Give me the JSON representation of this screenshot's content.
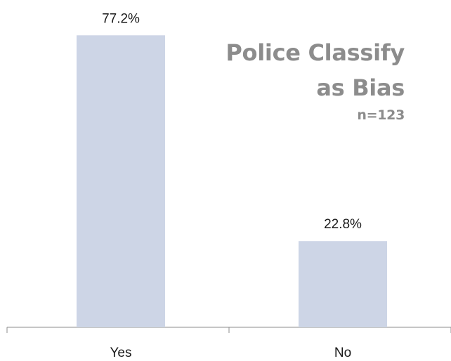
{
  "chart_data": {
    "type": "bar",
    "title_lines": [
      "Police Classify",
      "as Bias"
    ],
    "subtitle": "n=123",
    "categories": [
      "Yes",
      "No"
    ],
    "series": [
      {
        "values": [
          77.2,
          22.8
        ],
        "data_labels": [
          "77.2%",
          "22.8%"
        ]
      }
    ],
    "bar_color": "#cdd5e6",
    "ylim": [
      0,
      80
    ],
    "grid": false,
    "legend": "none"
  }
}
